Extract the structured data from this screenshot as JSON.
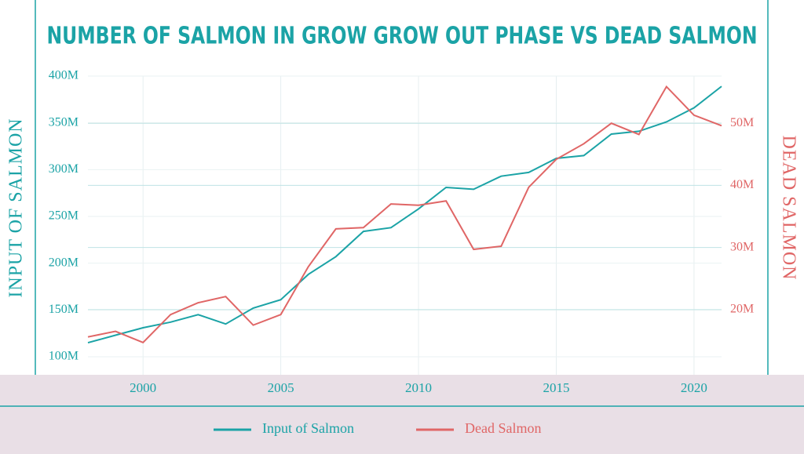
{
  "chart_data": {
    "type": "line",
    "title": "NUMBER OF SALMON IN GROW GROW OUT PHASE VS DEAD SALMON",
    "y_label": "INPUT OF SALMON",
    "y2_label": "DEAD SALMON",
    "x": [
      1998,
      1999,
      2000,
      2001,
      2002,
      2003,
      2004,
      2005,
      2006,
      2007,
      2008,
      2009,
      2010,
      2011,
      2012,
      2013,
      2014,
      2015,
      2016,
      2017,
      2018,
      2019,
      2020,
      2021
    ],
    "xlim": [
      1998,
      2021
    ],
    "xticks": [
      2000,
      2005,
      2010,
      2015,
      2020
    ],
    "ylim": [
      80700000,
      400000000
    ],
    "yticks": [
      {
        "value": 100000000,
        "label": "100M"
      },
      {
        "value": 150000000,
        "label": "150M"
      },
      {
        "value": 200000000,
        "label": "200M"
      },
      {
        "value": 250000000,
        "label": "250M"
      },
      {
        "value": 300000000,
        "label": "300M"
      },
      {
        "value": 350000000,
        "label": "350M"
      },
      {
        "value": 400000000,
        "label": "400M"
      }
    ],
    "y2lim": [
      9500000,
      57600000
    ],
    "y2ticks": [
      {
        "value": 20000000,
        "label": "20M"
      },
      {
        "value": 30000000,
        "label": "30M"
      },
      {
        "value": 40000000,
        "label": "40M"
      },
      {
        "value": 50000000,
        "label": "50M"
      }
    ],
    "grid": true,
    "legend": "bottom",
    "series": [
      {
        "name": "Input of Salmon",
        "color": "#1ba3a6",
        "axis": "y",
        "values": [
          115000000,
          123000000,
          131000000,
          137000000,
          145000000,
          135000000,
          152000000,
          161000000,
          188000000,
          207000000,
          234000000,
          238000000,
          258000000,
          281000000,
          279000000,
          293000000,
          297000000,
          312000000,
          315000000,
          338000000,
          341000000,
          351000000,
          366000000,
          389000000
        ]
      },
      {
        "name": "Dead Salmon",
        "color": "#e06666",
        "axis": "y2",
        "values": [
          15600000,
          16500000,
          14700000,
          19200000,
          21100000,
          22100000,
          17500000,
          19200000,
          26900000,
          33000000,
          33200000,
          37000000,
          36800000,
          37500000,
          29700000,
          30200000,
          39700000,
          44200000,
          46700000,
          50000000,
          48200000,
          55900000,
          51300000,
          49600000
        ]
      }
    ]
  }
}
